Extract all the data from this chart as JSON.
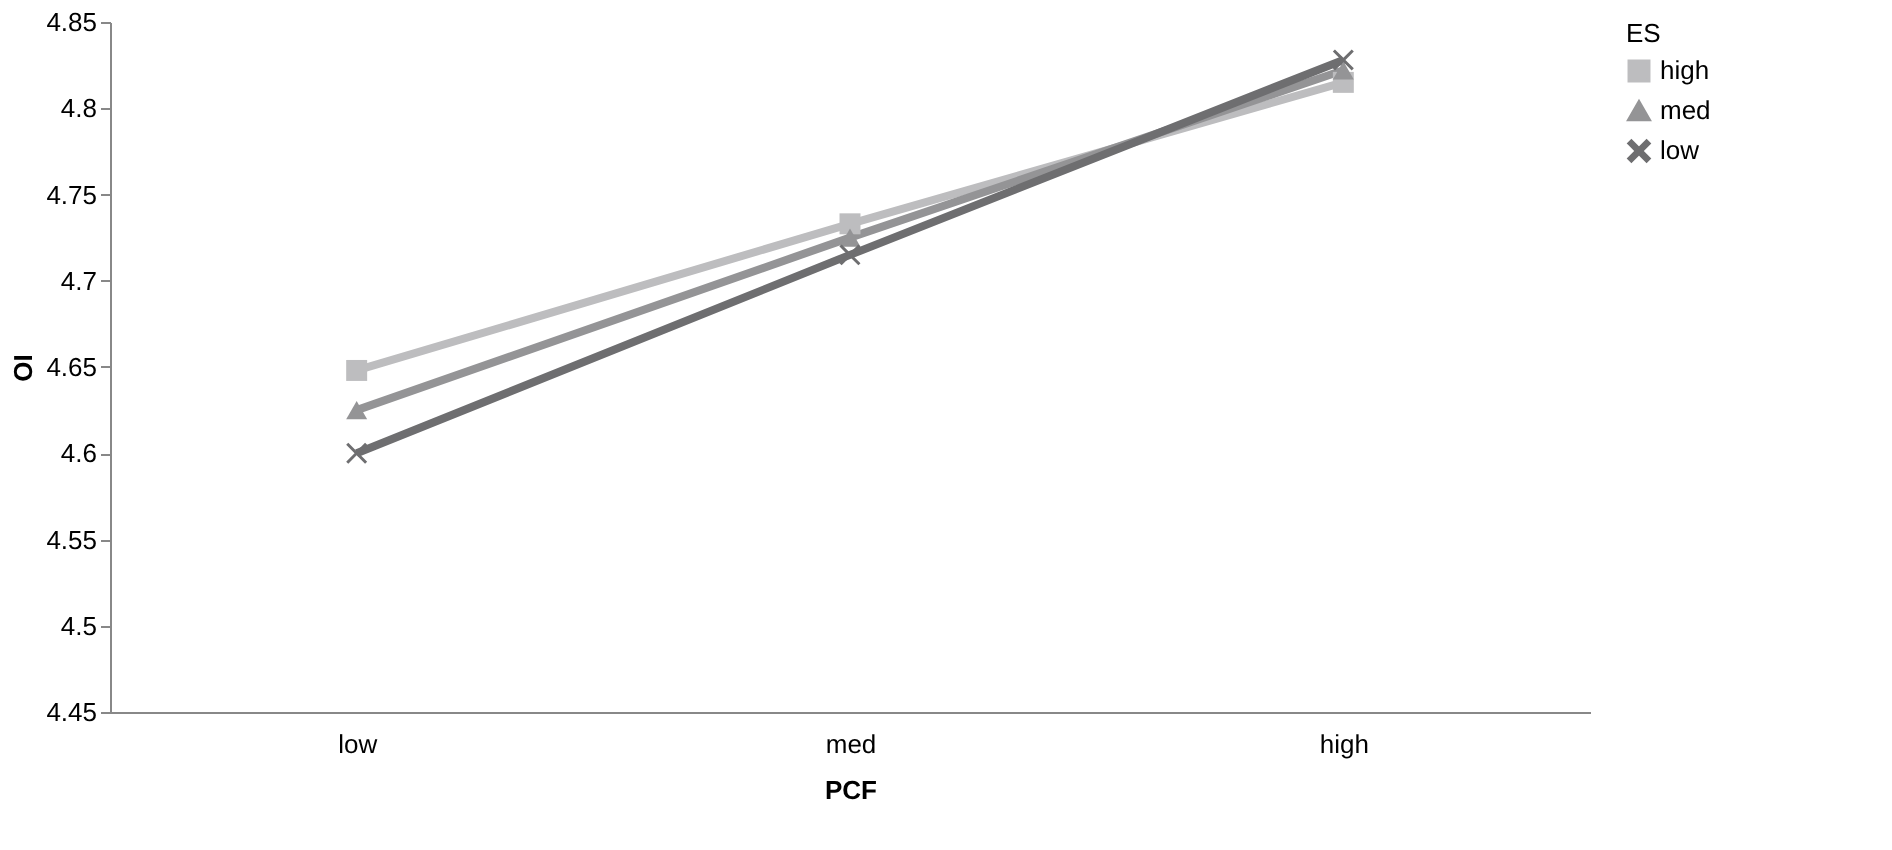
{
  "chart_data": {
    "type": "line",
    "xlabel": "PCF",
    "ylabel": "OI",
    "legend_title": "ES",
    "legend": "right",
    "grid": false,
    "categories": [
      "low",
      "med",
      "high"
    ],
    "ylim": [
      4.45,
      4.85
    ],
    "yticks": [
      4.45,
      4.5,
      4.55,
      4.6,
      4.65,
      4.7,
      4.75,
      4.8,
      4.85
    ],
    "series": [
      {
        "name": "high",
        "color": "#bdbdbf",
        "marker": "square",
        "values": [
          4.648,
          4.733,
          4.815
        ]
      },
      {
        "name": "med",
        "color": "#949496",
        "marker": "triangle",
        "values": [
          4.625,
          4.725,
          4.822
        ]
      },
      {
        "name": "low",
        "color": "#6e6e70",
        "marker": "cross",
        "values": [
          4.6,
          4.715,
          4.828
        ]
      }
    ]
  }
}
